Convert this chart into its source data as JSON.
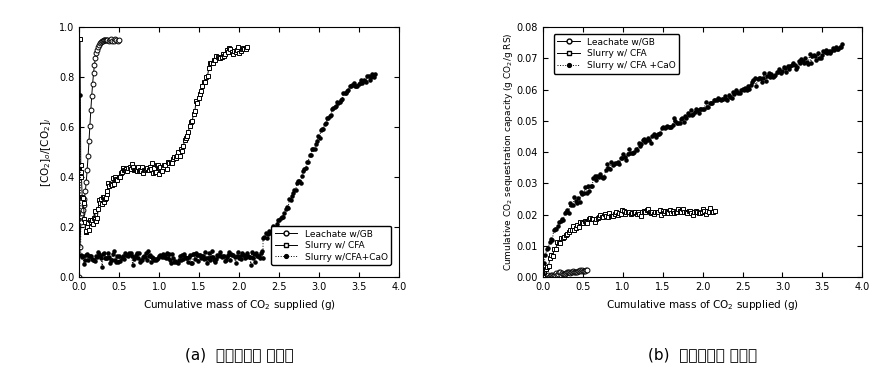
{
  "fig_width": 8.8,
  "fig_height": 3.85,
  "dpi": 100,
  "plot_a": {
    "xlabel": "Cumulative mass of CO$_2$ supplied (g)",
    "ylabel": "[CO$_2$]$_o$/[CO$_2$]$_i$",
    "xlim": [
      0,
      4.0
    ],
    "ylim": [
      0.0,
      1.0
    ],
    "xticks": [
      0.0,
      0.5,
      1.0,
      1.5,
      2.0,
      2.5,
      3.0,
      3.5,
      4.0
    ],
    "yticks": [
      0.0,
      0.2,
      0.4,
      0.6,
      0.8,
      1.0
    ],
    "caption": "(a)  이산화탄소 농도비",
    "legend_labels": [
      "Leachate w/GB",
      "Slurry w/ CFA",
      "Slurry w/CFA+CaO"
    ]
  },
  "plot_b": {
    "xlabel": "Cumulative mass of CO$_2$ supplied (g)",
    "ylabel": "Cumulative CO$_2$ sequestration capacity (g CO$_2$/g RS)",
    "xlim": [
      0,
      4.0
    ],
    "ylim": [
      0.0,
      0.08
    ],
    "xticks": [
      0.0,
      0.5,
      1.0,
      1.5,
      2.0,
      2.5,
      3.0,
      3.5,
      4.0
    ],
    "yticks": [
      0.0,
      0.01,
      0.02,
      0.03,
      0.04,
      0.05,
      0.06,
      0.07,
      0.08
    ],
    "caption": "(b)  이산화탄소 제거율",
    "legend_labels": [
      "Leachate w/GB",
      "Slurry w/ CFA",
      "Slurry w/ CFA +CaO"
    ]
  }
}
